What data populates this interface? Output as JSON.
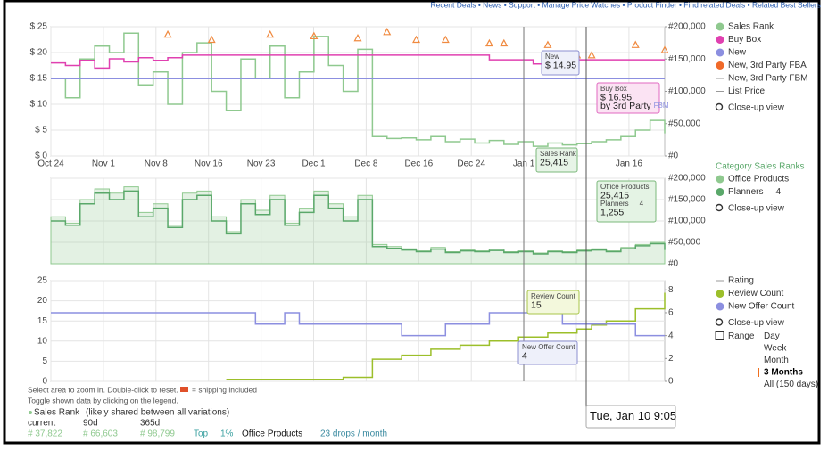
{
  "top_links": "Recent Deals  •  News  •  Support  •  Manage Price Watches  •  Product Finder  •  Find related Deals  •  Related Best Sellers",
  "x_labels": [
    "Oct 24",
    "Nov 1",
    "Nov 8",
    "Nov 16",
    "Nov 23",
    "Dec 1",
    "Dec 8",
    "Dec 16",
    "Dec 24",
    "Jan 1",
    null,
    "Jan 16"
  ],
  "panels": [
    {
      "type": "line",
      "ylim": [
        0,
        25
      ],
      "yticks": [
        {
          "value": 0,
          "label": "$ 0"
        },
        {
          "value": 5,
          "label": "$ 5"
        },
        {
          "value": 10,
          "label": "$ 10"
        },
        {
          "value": 15,
          "label": "$ 15"
        },
        {
          "value": 20,
          "label": "$ 20"
        },
        {
          "value": 25,
          "label": "$ 25"
        }
      ],
      "y2lim": [
        0,
        200000
      ],
      "y2ticks": [
        {
          "value": 0,
          "label": "#0"
        },
        {
          "value": 50000,
          "label": "#50,000"
        },
        {
          "value": 100000,
          "label": "#100,000"
        },
        {
          "value": 150000,
          "label": "#150,000"
        },
        {
          "value": 200000,
          "label": "#200,000"
        }
      ],
      "legend_title": null,
      "series": [
        {
          "name": "Sales Rank",
          "color": "#8fc98f",
          "axis": "y2",
          "style": "step",
          "symbol": "dot",
          "values": [
            120000,
            90000,
            150000,
            170000,
            160000,
            190000,
            110000,
            130000,
            80000,
            160000,
            175000,
            100000,
            70000,
            150000,
            120000,
            170000,
            90000,
            130000,
            185000,
            140000,
            100000,
            165000,
            30000,
            27000,
            28000,
            25000,
            30000,
            22000,
            26000,
            20000,
            24000,
            18000,
            22000,
            15000,
            20000,
            17000,
            19000,
            22000,
            25000,
            30000,
            40000,
            55000,
            35000
          ]
        },
        {
          "name": "Buy Box",
          "color": "#e040b0",
          "style": "step",
          "symbol": "dot",
          "values": [
            18,
            17.5,
            18.5,
            17,
            18.8,
            18.2,
            19,
            18.5,
            19,
            19.5,
            19.5,
            19.5,
            19.5,
            19.5,
            19.5,
            19.5,
            19.5,
            19.5,
            19.5,
            19.5,
            19.5,
            19.5,
            19.5,
            19.5,
            19.5,
            19.5,
            19.5,
            19.5,
            19.5,
            19.5,
            18.6,
            18.6,
            18.6,
            17.8,
            17.8,
            18.6,
            18.6,
            18.6,
            18.6,
            18.6,
            18.6,
            18.6,
            18.6
          ]
        },
        {
          "name": "New",
          "color": "#8c8fe0",
          "style": "step",
          "symbol": "dot",
          "values": [
            14.95,
            14.95
          ]
        },
        {
          "name": "New, 3rd Party FBA",
          "color": "#f06a2a",
          "style": "step",
          "symbol": "dot",
          "values": []
        },
        {
          "name": "New, 3rd Party FBM",
          "color": "#f08a40",
          "style": "triangle",
          "symbol": "line",
          "values": [
            null,
            null,
            null,
            null,
            null,
            null,
            null,
            null,
            23.5,
            null,
            null,
            22.5,
            null,
            null,
            null,
            23.5,
            null,
            null,
            23.2,
            null,
            null,
            22.8,
            null,
            24,
            null,
            22.5,
            null,
            22.5,
            null,
            null,
            21.8,
            21.8,
            null,
            null,
            21.5,
            null,
            19.5,
            19.5,
            null,
            null,
            21.5,
            null,
            20.5
          ]
        },
        {
          "name": "List Price",
          "color": "#999999",
          "style": "step",
          "symbol": "line",
          "values": []
        }
      ]
    },
    {
      "type": "line",
      "ylim": null,
      "yticks": [],
      "y2lim": [
        0,
        200000
      ],
      "y2ticks": [
        {
          "value": 0,
          "label": "#0"
        },
        {
          "value": 50000,
          "label": "#50,000"
        },
        {
          "value": 100000,
          "label": "#100,000"
        },
        {
          "value": 150000,
          "label": "#150,000"
        },
        {
          "value": 200000,
          "label": "#200,000"
        }
      ],
      "legend_title": "Category Sales Ranks",
      "series": [
        {
          "name": "Office Products",
          "color": "#8fc98f",
          "axis": "y2",
          "style": "area",
          "symbol": "dot",
          "values": [
            110000,
            95000,
            150000,
            175000,
            165000,
            180000,
            120000,
            140000,
            90000,
            165000,
            170000,
            110000,
            75000,
            150000,
            125000,
            160000,
            95000,
            130000,
            170000,
            140000,
            110000,
            160000,
            45000,
            40000,
            35000,
            30000,
            38000,
            28000,
            32000,
            30000,
            34000,
            28000,
            30000,
            25000,
            30000,
            28000,
            32000,
            35000,
            30000,
            38000,
            45000,
            50000,
            35000
          ]
        },
        {
          "name": "Planners",
          "badge": "4",
          "color": "#5aa86a",
          "axis": "y2",
          "style": "step",
          "symbol": "dot",
          "values": [
            100000,
            90000,
            140000,
            165000,
            150000,
            170000,
            110000,
            130000,
            85000,
            150000,
            160000,
            100000,
            70000,
            140000,
            115000,
            150000,
            90000,
            120000,
            160000,
            130000,
            100000,
            150000,
            40000,
            36000,
            32000,
            28000,
            34000,
            26000,
            30000,
            28000,
            31000,
            26000,
            28000,
            23000,
            28000,
            26000,
            30000,
            32000,
            28000,
            35000,
            42000,
            47000,
            32000
          ]
        }
      ]
    },
    {
      "type": "line",
      "ylim": [
        0,
        25
      ],
      "yticks": [
        0,
        5,
        10,
        15,
        20,
        25
      ],
      "y2lim": [
        0,
        8.8
      ],
      "y2ticks": [
        0,
        2,
        4,
        6,
        8
      ],
      "legend_title": null,
      "series": [
        {
          "name": "Rating",
          "color": "#999999",
          "style": "step",
          "symbol": "line",
          "values": []
        },
        {
          "name": "Review Count",
          "color": "#9cbf2a",
          "style": "step",
          "symbol": "dot",
          "values": [
            null,
            null,
            null,
            null,
            null,
            null,
            null,
            null,
            null,
            null,
            null,
            null,
            0.5,
            0.5,
            0.5,
            0.5,
            0.5,
            0.5,
            0.5,
            0.5,
            1,
            1,
            5.5,
            5.5,
            6.5,
            6.5,
            8,
            8,
            9,
            9,
            10,
            10,
            11,
            11,
            12,
            12,
            13,
            14,
            15,
            15,
            18,
            18,
            22
          ]
        },
        {
          "name": "New Offer Count",
          "color": "#8c8fe0",
          "axis": "y2",
          "style": "step",
          "symbol": "dot",
          "values": [
            6,
            6,
            6,
            6,
            6,
            6,
            6,
            6,
            6,
            6,
            6,
            6,
            6,
            6,
            5,
            5,
            6,
            5,
            5,
            5,
            5,
            5,
            5,
            5,
            4,
            4,
            4,
            5,
            5,
            5,
            6,
            6,
            6,
            6,
            6,
            5,
            5,
            5,
            5,
            5,
            4,
            4,
            4
          ]
        }
      ]
    }
  ],
  "closeup": "Close-up view",
  "range": {
    "label": "Range",
    "options": [
      "Day",
      "Week",
      "Month",
      "3 Months",
      "All (150 days)"
    ]
  },
  "tooltips": [
    {
      "rows": [
        [
          "New"
        ],
        [
          "$ 14.95"
        ]
      ]
    },
    {
      "rows": [
        [
          "Buy Box"
        ],
        [
          "$ 16.95"
        ],
        [
          "by 3rd Party",
          "FBM"
        ]
      ]
    },
    {
      "rows": [
        [
          "Sales Rank"
        ],
        [
          "25,415"
        ]
      ]
    },
    {
      "rows": [
        [
          "Office Products"
        ],
        [
          "25,415"
        ],
        [
          "Planners",
          "4"
        ],
        [
          "1,255"
        ]
      ]
    },
    {
      "rows": [
        [
          "Review Count"
        ],
        [
          "15"
        ]
      ]
    },
    {
      "rows": [
        [
          "New Offer Count"
        ],
        [
          "4"
        ]
      ]
    },
    {
      "rows": [
        [
          "Tue, Jan 10 9:05"
        ]
      ]
    }
  ],
  "notes": [
    "Select area to zoom in. Double-click to reset.",
    "= shipping included",
    "Toggle shown data by clicking on the legend."
  ],
  "stats": {
    "title": "Sales Rank",
    "subtitle": "(likely shared between all variations)",
    "header": [
      "current",
      "90d",
      "365d"
    ],
    "row": [
      "# 37,822",
      "# 66,603",
      "# 98,799",
      "Top",
      "1%",
      "Office Products",
      "23 drops / month"
    ]
  }
}
